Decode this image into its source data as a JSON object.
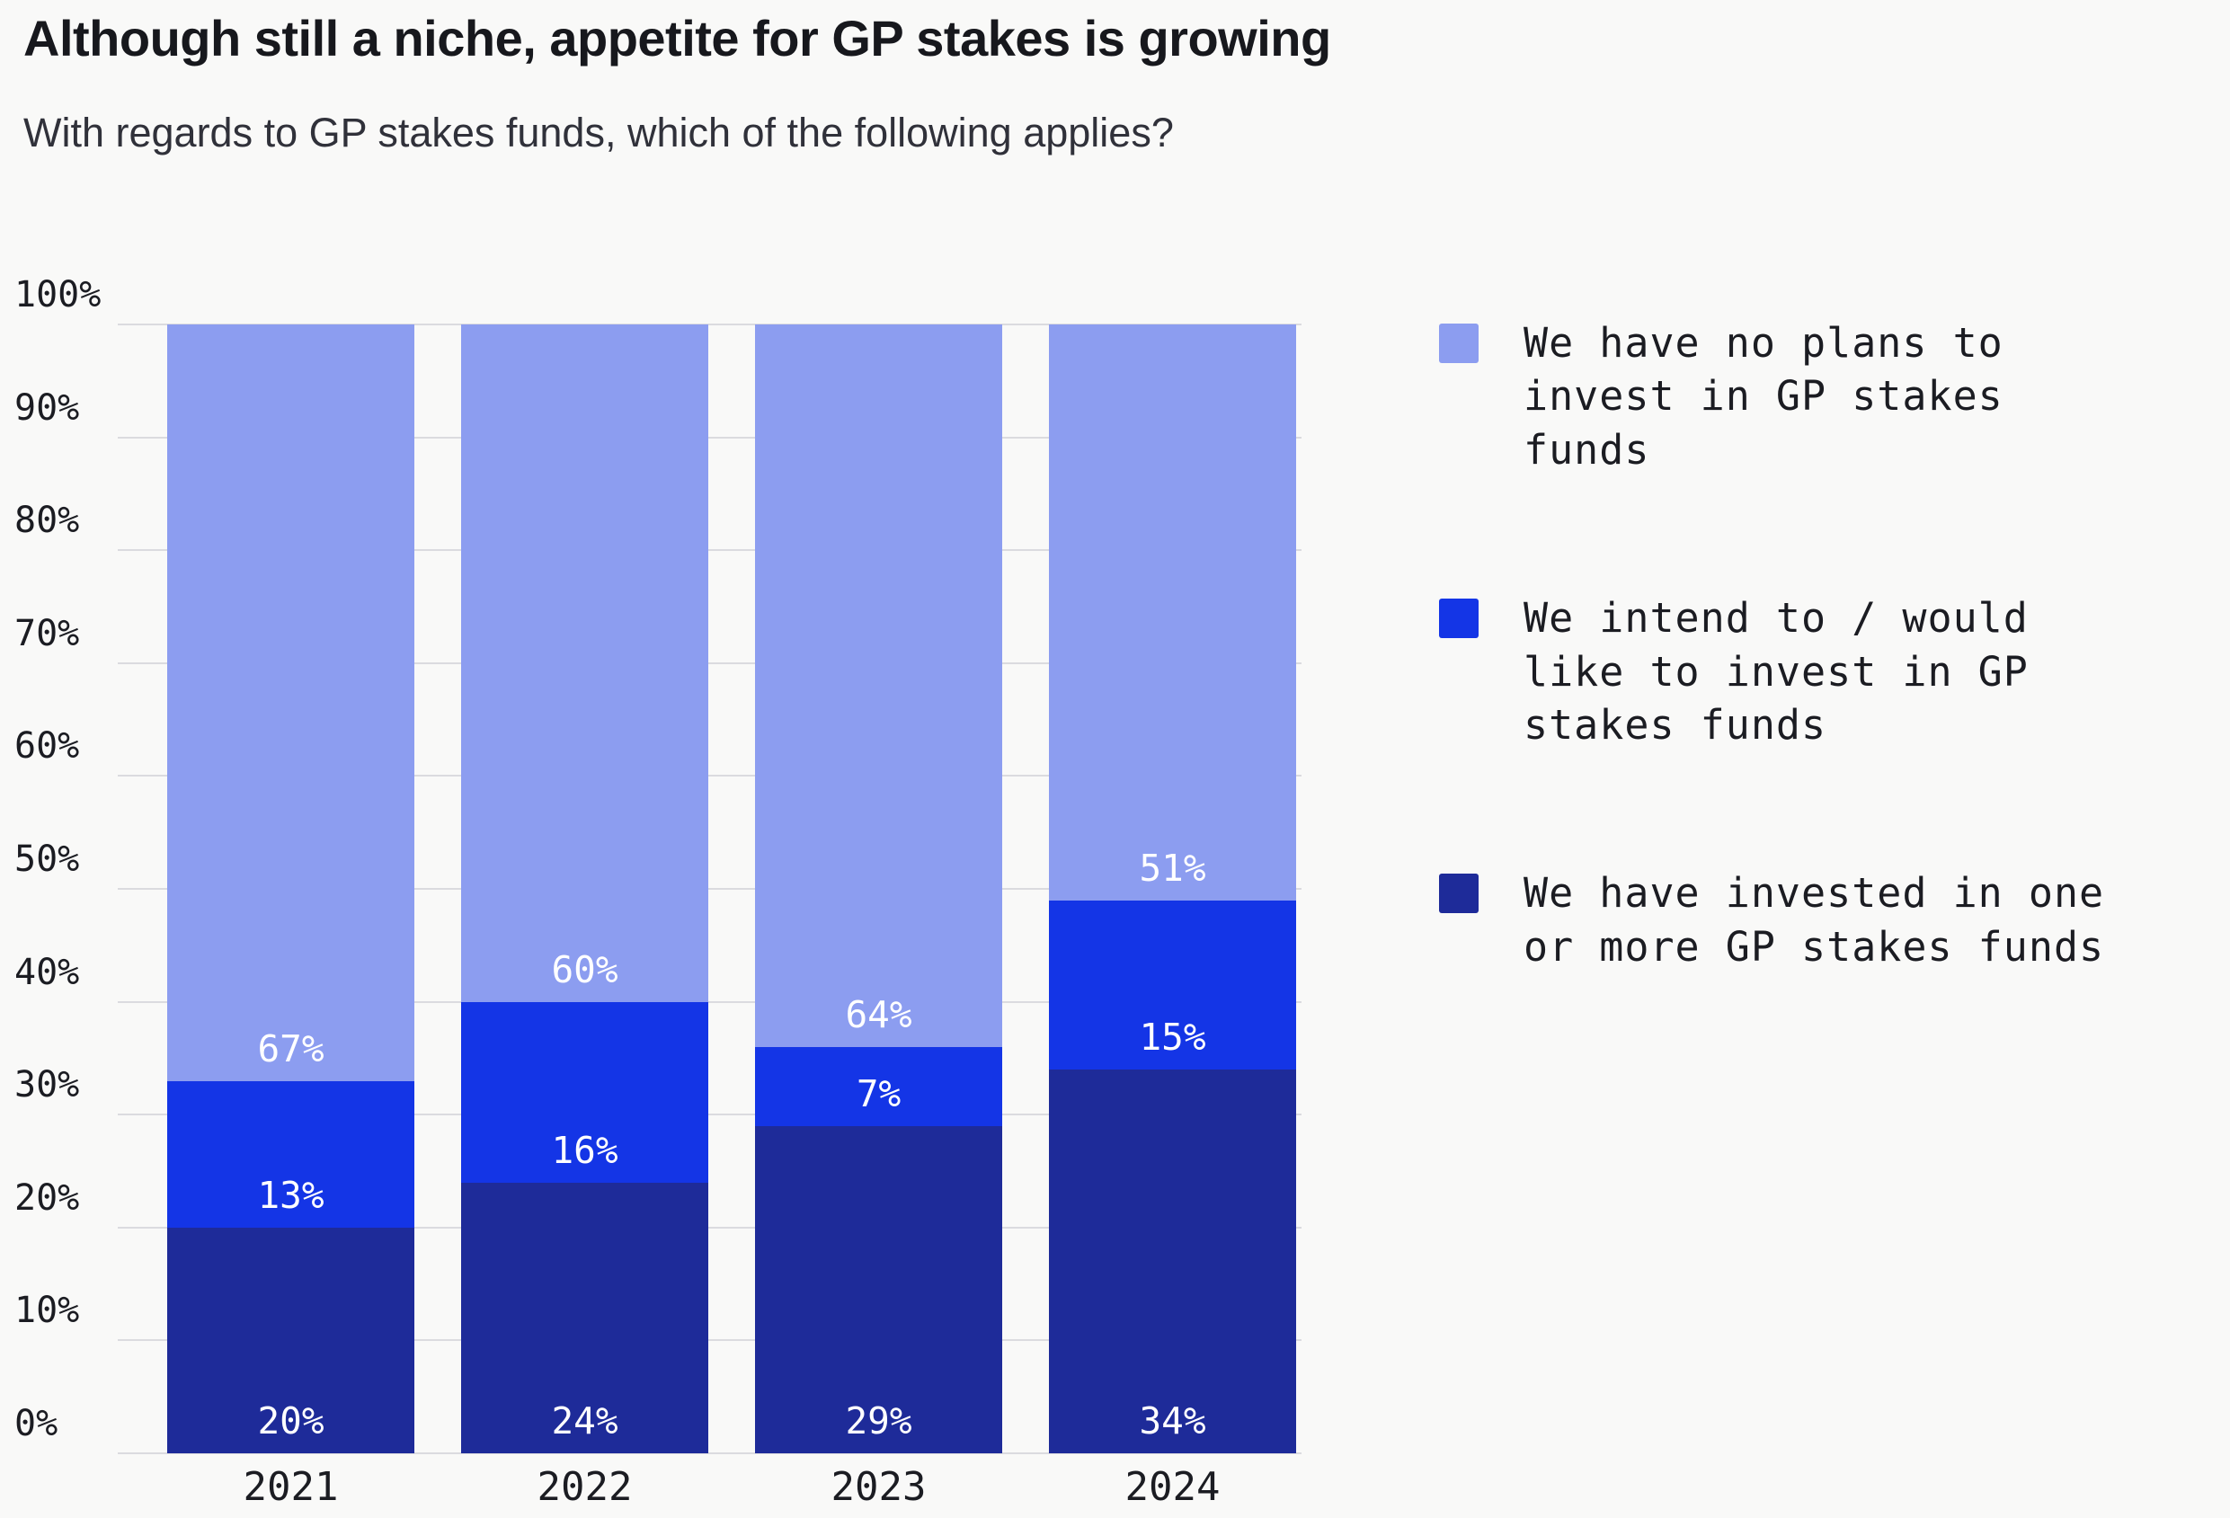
{
  "page": {
    "title": "Although still a niche, appetite for GP stakes is growing",
    "subtitle": "With regards to GP stakes funds, which of the following applies?"
  },
  "colors": {
    "navy": "#1e2b99",
    "blue": "#1435e6",
    "light": "#8c9df0"
  },
  "chart_data": {
    "type": "bar",
    "stacked": true,
    "title": "Although still a niche, appetite for GP stakes is growing",
    "subtitle": "With regards to GP stakes funds, which of the following applies?",
    "categories": [
      "2021",
      "2022",
      "2023",
      "2024"
    ],
    "series": [
      {
        "name": "We have invested in one or more GP stakes funds",
        "color_key": "navy",
        "values": [
          20,
          24,
          29,
          34
        ]
      },
      {
        "name": "We intend to / would like to invest in GP stakes funds",
        "color_key": "blue",
        "values": [
          13,
          16,
          7,
          15
        ]
      },
      {
        "name": "We have no plans to invest in GP stakes funds",
        "color_key": "light",
        "values": [
          67,
          60,
          64,
          51
        ]
      }
    ],
    "value_suffix": "%",
    "ylim": [
      0,
      100
    ],
    "yticks": [
      "0%",
      "10%",
      "20%",
      "30%",
      "40%",
      "50%",
      "60%",
      "70%",
      "80%",
      "90%",
      "100%"
    ],
    "grid": true,
    "legend_position": "right"
  },
  "legend": {
    "items": [
      {
        "label": "We have no plans to\ninvest in GP stakes\nfunds",
        "color_key": "light"
      },
      {
        "label": "We intend to / would\nlike to invest in GP\nstakes funds",
        "color_key": "blue"
      },
      {
        "label": "We have invested in one\nor more GP stakes funds",
        "color_key": "navy"
      }
    ]
  }
}
